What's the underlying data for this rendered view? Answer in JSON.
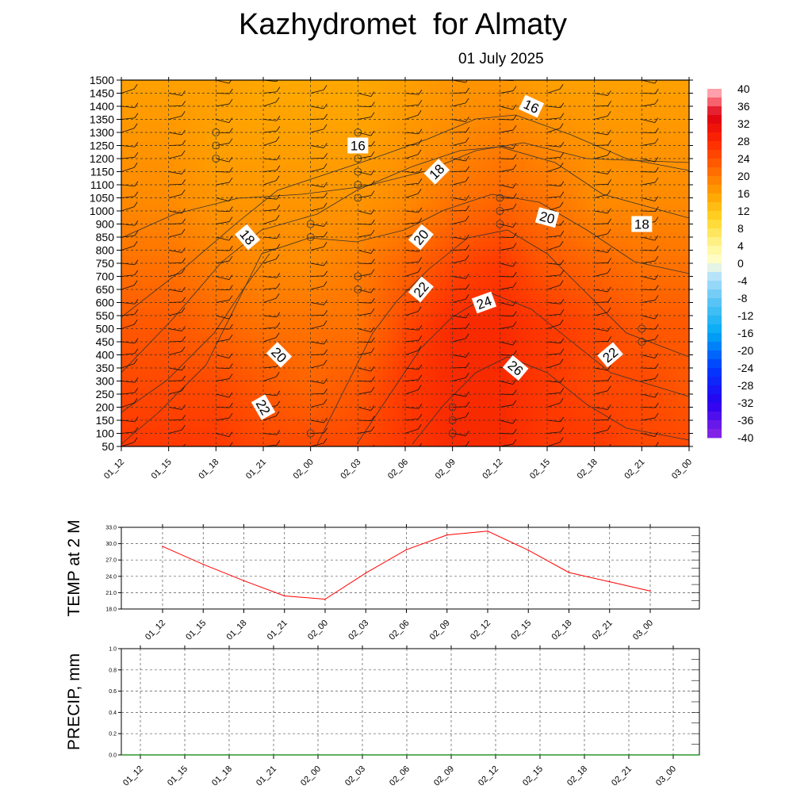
{
  "title": "Kazhydromet  for Almaty",
  "subtitle": "01 July 2025",
  "colors": {
    "temp_line": "#ff0000",
    "precip_line": "#008000"
  },
  "chart_data": [
    {
      "type": "heatmap",
      "x_ticks": [
        "01_12",
        "01_15",
        "01_18",
        "01_21",
        "02_00",
        "02_03",
        "02_06",
        "02_09",
        "02_12",
        "02_15",
        "02_18",
        "02_21",
        "03_00"
      ],
      "y_ticks": [
        50,
        100,
        150,
        200,
        250,
        300,
        350,
        400,
        450,
        500,
        550,
        600,
        650,
        700,
        750,
        800,
        850,
        900,
        1000,
        1050,
        1100,
        1150,
        1200,
        1250,
        1300,
        1350,
        1400,
        1450,
        1500
      ],
      "colorbar": {
        "labels": [
          40,
          36,
          32,
          28,
          24,
          20,
          16,
          12,
          8,
          4,
          0,
          -4,
          -8,
          -12,
          -16,
          -20,
          -24,
          -28,
          -32,
          -36,
          -40
        ],
        "colors": [
          "#ffb6c1",
          "#e8000a",
          "#ff2a00",
          "#ff4d00",
          "#ff6a00",
          "#ff8a00",
          "#ffa500",
          "#ffc000",
          "#ffdd33",
          "#fff59a",
          "#ffffcc",
          "#d6eefa",
          "#9ad7f5",
          "#48c4f0",
          "#00aaf0",
          "#0088ff",
          "#0055ff",
          "#0022ff",
          "#1a00e6",
          "#4b00e0",
          "#8a2be2"
        ]
      },
      "grid": true,
      "grid_temps": [
        [
          24,
          24,
          24,
          23,
          23,
          23,
          24,
          25,
          25,
          24,
          24,
          23,
          23
        ],
        [
          23,
          23,
          23,
          22,
          21,
          22,
          24,
          25,
          25,
          24,
          23,
          23,
          22
        ],
        [
          22,
          22,
          21,
          20,
          20,
          20,
          23,
          25,
          25,
          24,
          23,
          22,
          22
        ],
        [
          20,
          20,
          19,
          18,
          18,
          19,
          21,
          23,
          24,
          22,
          21,
          20,
          20
        ],
        [
          18,
          18,
          17,
          17,
          17,
          17,
          18,
          20,
          21,
          20,
          18,
          18,
          18
        ],
        [
          17,
          17,
          16,
          16,
          16,
          16,
          17,
          18,
          19,
          18,
          17,
          17,
          17
        ],
        [
          16,
          16,
          16,
          15,
          15,
          15,
          16,
          17,
          17,
          16,
          16,
          16,
          16
        ]
      ],
      "contour_labels": [
        {
          "text": "16",
          "x": "02_03",
          "y": 1250,
          "angle": 0
        },
        {
          "text": "16",
          "x": "02_14",
          "y": 1400,
          "angle": 25
        },
        {
          "text": "18",
          "x": "02_08",
          "y": 1150,
          "angle": -45
        },
        {
          "text": "18",
          "x": "01_20",
          "y": 850,
          "angle": 50
        },
        {
          "text": "18",
          "x": "02_21",
          "y": 900,
          "angle": 0
        },
        {
          "text": "20",
          "x": "02_07",
          "y": 850,
          "angle": -50
        },
        {
          "text": "20",
          "x": "02_15",
          "y": 950,
          "angle": 15
        },
        {
          "text": "20",
          "x": "01_22",
          "y": 400,
          "angle": 45
        },
        {
          "text": "22",
          "x": "02_07",
          "y": 650,
          "angle": -50
        },
        {
          "text": "22",
          "x": "02_19",
          "y": 400,
          "angle": -40
        },
        {
          "text": "22",
          "x": "01_21",
          "y": 200,
          "angle": 60
        },
        {
          "text": "24",
          "x": "02_11",
          "y": 600,
          "angle": -20
        },
        {
          "text": "26",
          "x": "02_13",
          "y": 350,
          "angle": 40
        }
      ]
    },
    {
      "type": "line",
      "ylabel": "TEMP at 2 M",
      "x": [
        "01_12",
        "01_15",
        "01_18",
        "01_21",
        "02_00",
        "02_03",
        "02_06",
        "02_09",
        "02_12",
        "02_15",
        "02_18",
        "02_21",
        "03_00"
      ],
      "series": [
        {
          "values": [
            29.5,
            26.2,
            23.2,
            20.4,
            19.8,
            24.6,
            28.9,
            31.6,
            32.3,
            28.8,
            24.7,
            23.0,
            21.3
          ]
        }
      ],
      "yticks": [
        "33.0",
        "30.0",
        "27.0",
        "24.0",
        "21.0",
        "18.0"
      ],
      "ylim": [
        18,
        33
      ],
      "grid": true
    },
    {
      "type": "line",
      "ylabel": "PRECIP, mm",
      "x": [
        "01_12",
        "01_15",
        "01_18",
        "01_21",
        "02_00",
        "02_03",
        "02_06",
        "02_09",
        "02_12",
        "02_15",
        "02_18",
        "02_21",
        "03_00"
      ],
      "series": [
        {
          "values": [
            0,
            0,
            0,
            0,
            0,
            0,
            0,
            0,
            0,
            0,
            0,
            0,
            0
          ]
        }
      ],
      "yticks": [
        "1.0",
        "0.8",
        "0.6",
        "0.4",
        "0.2",
        "0.0"
      ],
      "ylim": [
        0,
        1
      ],
      "grid": true
    }
  ]
}
